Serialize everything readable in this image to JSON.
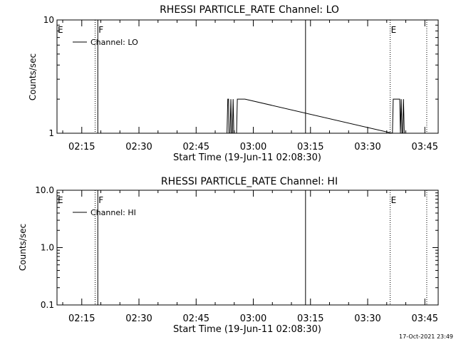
{
  "footer": {
    "timestamp": "17-Oct-2021 23:49"
  },
  "colors": {
    "background": "#ffffff",
    "foreground": "#000000"
  },
  "chart_data": [
    {
      "type": "line",
      "title": "RHESSI PARTICLE_RATE Channel: LO",
      "xlabel": "Start Time (19-Jun-11 02:08:30)",
      "ylabel": "Counts/sec",
      "y_scale": "log",
      "ylim": [
        1,
        10
      ],
      "y_ticks": [
        1,
        10
      ],
      "y_tick_labels": [
        "1",
        "10"
      ],
      "x_unit": "minutes after 02:08:30",
      "xlim": [
        0,
        100
      ],
      "x_ticks": [
        6.5,
        21.5,
        36.5,
        51.5,
        66.5,
        81.5,
        96.5
      ],
      "x_tick_labels": [
        "02:15",
        "02:30",
        "02:45",
        "03:00",
        "03:15",
        "03:30",
        "03:45"
      ],
      "legend": {
        "label": "Channel: LO",
        "placement": "top-left"
      },
      "markers": [
        {
          "label": "E",
          "x": 0.0,
          "style": "dotted"
        },
        {
          "label": "",
          "x": 10.0,
          "style": "dotted"
        },
        {
          "label": "F",
          "x": 10.7,
          "style": "solid"
        },
        {
          "label": "",
          "x": 65.2,
          "style": "solid"
        },
        {
          "label": "E",
          "x": 87.4,
          "style": "dotted"
        },
        {
          "label": "",
          "x": 97.0,
          "style": "dotted"
        }
      ],
      "series": [
        {
          "name": "Channel: LO",
          "points": [
            [
              44.6,
              1
            ],
            [
              44.8,
              2
            ],
            [
              45.0,
              2
            ],
            [
              45.1,
              1
            ],
            [
              45.4,
              1
            ],
            [
              45.6,
              2
            ],
            [
              45.8,
              1
            ],
            [
              46.0,
              1
            ],
            [
              46.2,
              2
            ],
            [
              46.4,
              1
            ],
            [
              47.1,
              1
            ],
            [
              47.3,
              2
            ],
            [
              49.3,
              2
            ],
            [
              88.0,
              1
            ],
            [
              88.2,
              2
            ],
            [
              89.9,
              2
            ],
            [
              90.1,
              1
            ],
            [
              90.3,
              2
            ],
            [
              90.5,
              1
            ],
            [
              90.7,
              1
            ],
            [
              90.9,
              2
            ],
            [
              91.1,
              1
            ],
            [
              91.5,
              1
            ]
          ]
        }
      ]
    },
    {
      "type": "line",
      "title": "RHESSI PARTICLE_RATE Channel: HI",
      "xlabel": "Start Time (19-Jun-11 02:08:30)",
      "ylabel": "Counts/sec",
      "y_scale": "log",
      "ylim": [
        0.1,
        10
      ],
      "y_ticks": [
        0.1,
        1,
        10
      ],
      "y_tick_labels": [
        "0.1",
        "1.0",
        "10.0"
      ],
      "x_unit": "minutes after 02:08:30",
      "xlim": [
        0,
        100
      ],
      "x_ticks": [
        6.5,
        21.5,
        36.5,
        51.5,
        66.5,
        81.5,
        96.5
      ],
      "x_tick_labels": [
        "02:15",
        "02:30",
        "02:45",
        "03:00",
        "03:15",
        "03:30",
        "03:45"
      ],
      "legend": {
        "label": "Channel: HI",
        "placement": "top-left"
      },
      "markers": [
        {
          "label": "E",
          "x": 0.0,
          "style": "dotted"
        },
        {
          "label": "",
          "x": 10.0,
          "style": "dotted"
        },
        {
          "label": "F",
          "x": 10.7,
          "style": "solid"
        },
        {
          "label": "",
          "x": 65.2,
          "style": "solid"
        },
        {
          "label": "E",
          "x": 87.4,
          "style": "dotted"
        },
        {
          "label": "",
          "x": 97.0,
          "style": "dotted"
        }
      ],
      "series": [
        {
          "name": "Channel: HI",
          "points": []
        }
      ]
    }
  ]
}
